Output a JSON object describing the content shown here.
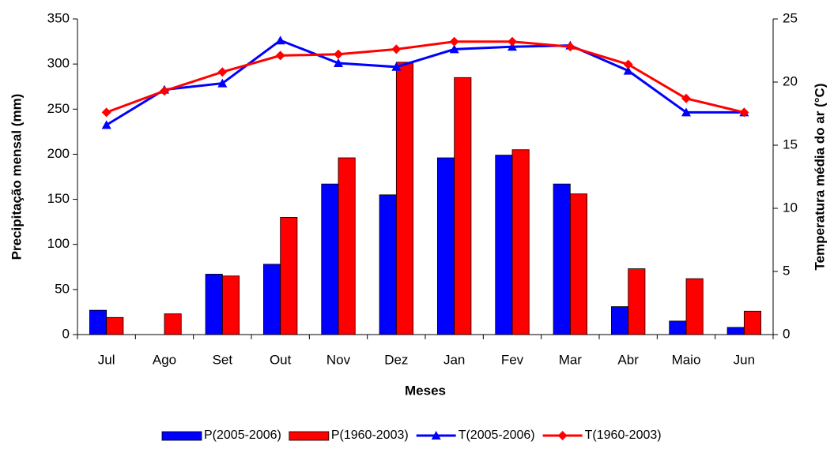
{
  "chart_data": {
    "type": "bar-line",
    "categories": [
      "Jul",
      "Ago",
      "Set",
      "Out",
      "Nov",
      "Dez",
      "Jan",
      "Fev",
      "Mar",
      "Abr",
      "Maio",
      "Jun"
    ],
    "x_label": "Meses",
    "y_label": "Precipitação mensal (mm)",
    "y2_label": "Temperatura média do ar (°C)",
    "ylim": [
      0,
      350
    ],
    "yticks": [
      0,
      50,
      100,
      150,
      200,
      250,
      300,
      350
    ],
    "y2lim": [
      0,
      25
    ],
    "y2ticks": [
      0,
      5,
      10,
      15,
      20,
      25
    ],
    "legend": "bottom",
    "series": [
      {
        "name": "P(2005-2006)",
        "type": "bar",
        "color": "#0000ff",
        "values": [
          27,
          0,
          67,
          78,
          167,
          155,
          196,
          199,
          167,
          31,
          15,
          8
        ]
      },
      {
        "name": "P(1960-2003)",
        "type": "bar",
        "color": "#ff0000",
        "values": [
          19,
          23,
          65,
          130,
          196,
          302,
          285,
          205,
          156,
          73,
          62,
          26
        ]
      },
      {
        "name": "T(2005-2006)",
        "type": "line",
        "axis": "y2",
        "marker": "triangle",
        "color": "#0000ff",
        "values": [
          16.6,
          19.4,
          19.9,
          23.3,
          21.5,
          21.2,
          22.6,
          22.8,
          22.9,
          20.9,
          17.6,
          17.6
        ]
      },
      {
        "name": "T(1960-2003)",
        "type": "line",
        "axis": "y2",
        "marker": "diamond",
        "color": "#ff0000",
        "values": [
          17.6,
          19.3,
          20.8,
          22.1,
          22.2,
          22.6,
          23.2,
          23.2,
          22.8,
          21.4,
          18.7,
          17.6
        ]
      }
    ]
  }
}
